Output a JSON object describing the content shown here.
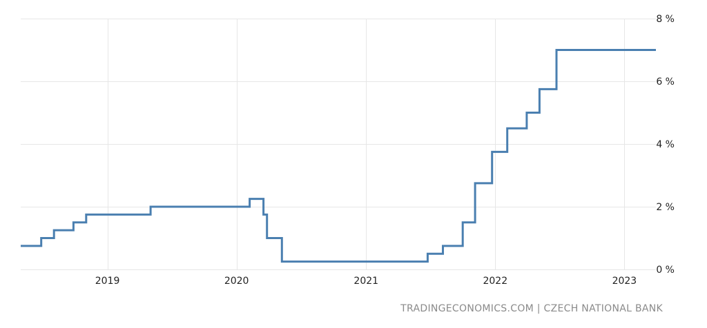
{
  "chart_data": {
    "type": "line",
    "title": "",
    "xlabel": "",
    "ylabel": "",
    "step": true,
    "grid": true,
    "ylim": [
      0,
      8
    ],
    "xlim": [
      "2018-05-01",
      "2023-03-31"
    ],
    "y_ticks": [
      {
        "value": 0,
        "label": "0 %"
      },
      {
        "value": 2,
        "label": "2 %"
      },
      {
        "value": 4,
        "label": "4 %"
      },
      {
        "value": 6,
        "label": "6 %"
      },
      {
        "value": 8,
        "label": "8 %"
      }
    ],
    "x_ticks": [
      {
        "value": "2019-01-01",
        "label": "2019"
      },
      {
        "value": "2020-01-01",
        "label": "2020"
      },
      {
        "value": "2021-01-01",
        "label": "2021"
      },
      {
        "value": "2022-01-01",
        "label": "2022"
      },
      {
        "value": "2023-01-01",
        "label": "2023"
      }
    ],
    "series": [
      {
        "color": "#4a7fb0",
        "points": [
          {
            "x": "2018-05-01",
            "y": 0.75
          },
          {
            "x": "2018-06-28",
            "y": 1.0
          },
          {
            "x": "2018-08-03",
            "y": 1.25
          },
          {
            "x": "2018-09-27",
            "y": 1.5
          },
          {
            "x": "2018-11-02",
            "y": 1.75
          },
          {
            "x": "2019-05-03",
            "y": 2.0
          },
          {
            "x": "2020-02-07",
            "y": 2.25
          },
          {
            "x": "2020-03-17",
            "y": 1.75
          },
          {
            "x": "2020-03-27",
            "y": 1.0
          },
          {
            "x": "2020-05-08",
            "y": 0.25
          },
          {
            "x": "2021-06-24",
            "y": 0.5
          },
          {
            "x": "2021-08-06",
            "y": 0.75
          },
          {
            "x": "2021-10-01",
            "y": 1.5
          },
          {
            "x": "2021-11-05",
            "y": 2.75
          },
          {
            "x": "2021-12-23",
            "y": 3.75
          },
          {
            "x": "2022-02-04",
            "y": 4.5
          },
          {
            "x": "2022-03-31",
            "y": 5.0
          },
          {
            "x": "2022-05-06",
            "y": 5.75
          },
          {
            "x": "2022-06-23",
            "y": 7.0
          },
          {
            "x": "2023-03-31",
            "y": 7.0
          }
        ]
      }
    ]
  },
  "source_text": "TRADINGECONOMICS.COM | CZECH NATIONAL BANK"
}
